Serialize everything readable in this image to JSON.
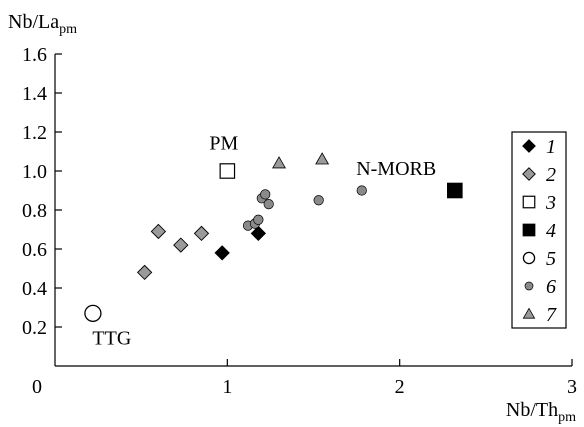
{
  "chart_data": {
    "type": "scatter",
    "xlabel": {
      "main": "Nb/Th",
      "sub": "pm"
    },
    "ylabel": {
      "main": "Nb/La",
      "sub": "pm"
    },
    "xlim": [
      0,
      3
    ],
    "ylim": [
      0,
      1.6
    ],
    "xticks": [
      0,
      1,
      2,
      3
    ],
    "xtick_labels": [
      "0",
      "1",
      "2",
      "3"
    ],
    "yticks": [
      0.2,
      0.4,
      0.6,
      0.8,
      1.0,
      1.2,
      1.4,
      1.6
    ],
    "ytick_labels": [
      "0.2",
      "0.4",
      "0.6",
      "0.8",
      "1.0",
      "1.2",
      "1.4",
      "1.6"
    ],
    "grid": false,
    "legend_position": "right",
    "series": [
      {
        "name": "1",
        "marker": "diamond",
        "fill": "#000000",
        "x": [
          0.97,
          1.18
        ],
        "y": [
          0.58,
          0.68
        ]
      },
      {
        "name": "2",
        "marker": "diamond",
        "fill": "#9a9a9a",
        "x": [
          0.52,
          0.6,
          0.73,
          0.85
        ],
        "y": [
          0.48,
          0.69,
          0.62,
          0.68
        ]
      },
      {
        "name": "3",
        "marker": "square-open",
        "fill": "#ffffff",
        "x": [
          1.0
        ],
        "y": [
          1.0
        ]
      },
      {
        "name": "4",
        "marker": "square",
        "fill": "#000000",
        "x": [
          2.32
        ],
        "y": [
          0.9
        ]
      },
      {
        "name": "5",
        "marker": "circle-open",
        "fill": "#ffffff",
        "x": [
          0.22
        ],
        "y": [
          0.27
        ]
      },
      {
        "name": "6",
        "marker": "circle",
        "fill": "#8a8a8a",
        "x": [
          1.12,
          1.16,
          1.18,
          1.2,
          1.22,
          1.24,
          1.53,
          1.78
        ],
        "y": [
          0.72,
          0.73,
          0.75,
          0.86,
          0.88,
          0.83,
          0.85,
          0.9
        ]
      },
      {
        "name": "7",
        "marker": "triangle",
        "fill": "#9a9a9a",
        "x": [
          1.3,
          1.55
        ],
        "y": [
          1.04,
          1.06
        ]
      }
    ],
    "annotations": [
      {
        "text": "PM",
        "x": 0.98,
        "y": 1.11
      },
      {
        "text": "N-MORB",
        "x": 1.98,
        "y": 0.98
      },
      {
        "text": "TTG",
        "x": 0.33,
        "y": 0.11
      }
    ]
  }
}
